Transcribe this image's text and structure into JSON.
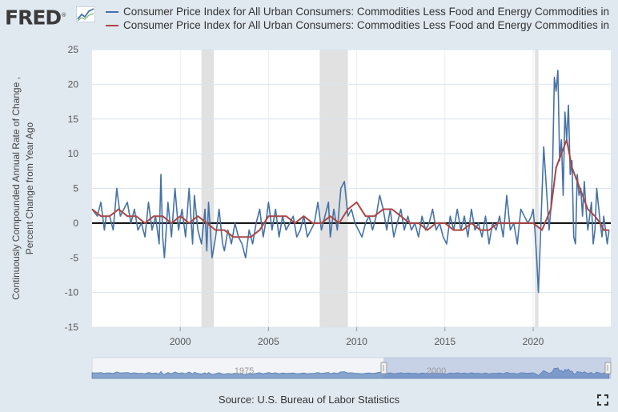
{
  "header": {
    "logo_text": "FRED",
    "logo_mark": "®",
    "logo_icon": "fred-chart-icon"
  },
  "legend": [
    {
      "label": "Consumer Price Index for All Urban Consumers: Commodities Less Food and Energy Commodities in",
      "color": "#4572a7"
    },
    {
      "label": "Consumer Price Index for All Urban Consumers: Commodities Less Food and Energy Commodities in",
      "color": "#aa4643"
    }
  ],
  "source": "Source: U.S. Bureau of Labor Statistics",
  "chart_data": {
    "type": "line",
    "title": "",
    "xlabel": "",
    "ylabel": "Continuously Compounded Annual Rate of Change ,\nPercent Change from Year Ago",
    "xlim": [
      1995.0,
      2024.4
    ],
    "ylim": [
      -15,
      25
    ],
    "yticks": [
      -15,
      -10,
      -5,
      0,
      5,
      10,
      15,
      20,
      25
    ],
    "xticks": [
      2000,
      2005,
      2010,
      2015,
      2020
    ],
    "recessions": [
      [
        2001.2,
        2001.9
      ],
      [
        2007.9,
        2009.5
      ],
      [
        2020.1,
        2020.3
      ]
    ],
    "zero_line": 0,
    "series": [
      {
        "name": "Consumer Price Index for All Urban Consumers: Commodities Less Food and Energy Commodities in (Continuously Compounded Annual Rate of Change)",
        "color": "#4572a7",
        "points": [
          [
            1995.0,
            2
          ],
          [
            1995.3,
            1
          ],
          [
            1995.5,
            3
          ],
          [
            1995.7,
            -1
          ],
          [
            1995.8,
            1
          ],
          [
            1996.0,
            1
          ],
          [
            1996.2,
            -1
          ],
          [
            1996.4,
            5
          ],
          [
            1996.6,
            1
          ],
          [
            1996.8,
            2
          ],
          [
            1997.0,
            3
          ],
          [
            1997.2,
            0
          ],
          [
            1997.4,
            2
          ],
          [
            1997.6,
            -1
          ],
          [
            1997.8,
            0
          ],
          [
            1998.0,
            -2
          ],
          [
            1998.2,
            3
          ],
          [
            1998.4,
            -1
          ],
          [
            1998.6,
            1
          ],
          [
            1998.8,
            -3
          ],
          [
            1998.9,
            7
          ],
          [
            1999.0,
            -2
          ],
          [
            1999.1,
            -5
          ],
          [
            1999.3,
            3
          ],
          [
            1999.5,
            -2
          ],
          [
            1999.7,
            5
          ],
          [
            1999.9,
            -1
          ],
          [
            2000.1,
            2
          ],
          [
            2000.3,
            -2
          ],
          [
            2000.5,
            5
          ],
          [
            2000.7,
            -3
          ],
          [
            2000.8,
            4
          ],
          [
            2001.0,
            -1
          ],
          [
            2001.2,
            -3
          ],
          [
            2001.4,
            2
          ],
          [
            2001.5,
            -4
          ],
          [
            2001.6,
            3
          ],
          [
            2001.8,
            -5
          ],
          [
            2002.0,
            -2
          ],
          [
            2002.2,
            2
          ],
          [
            2002.4,
            -3
          ],
          [
            2002.5,
            -4
          ],
          [
            2002.7,
            -1
          ],
          [
            2002.9,
            -3
          ],
          [
            2003.1,
            0
          ],
          [
            2003.3,
            -2
          ],
          [
            2003.5,
            -3
          ],
          [
            2003.7,
            -5
          ],
          [
            2003.9,
            -1
          ],
          [
            2004.1,
            -3
          ],
          [
            2004.3,
            0
          ],
          [
            2004.5,
            2
          ],
          [
            2004.7,
            -2
          ],
          [
            2004.9,
            1
          ],
          [
            2005.0,
            3
          ],
          [
            2005.2,
            -1
          ],
          [
            2005.4,
            2
          ],
          [
            2005.6,
            -2
          ],
          [
            2005.8,
            1
          ],
          [
            2006.0,
            -1
          ],
          [
            2006.2,
            0
          ],
          [
            2006.4,
            1
          ],
          [
            2006.6,
            -2
          ],
          [
            2006.8,
            -1
          ],
          [
            2007.0,
            1
          ],
          [
            2007.2,
            -2
          ],
          [
            2007.4,
            -1
          ],
          [
            2007.6,
            0
          ],
          [
            2007.8,
            3
          ],
          [
            2008.0,
            -1
          ],
          [
            2008.2,
            1
          ],
          [
            2008.4,
            3
          ],
          [
            2008.5,
            -2
          ],
          [
            2008.7,
            2
          ],
          [
            2008.9,
            -1
          ],
          [
            2009.1,
            5
          ],
          [
            2009.3,
            6
          ],
          [
            2009.5,
            1
          ],
          [
            2009.7,
            2
          ],
          [
            2009.9,
            0
          ],
          [
            2010.1,
            -1
          ],
          [
            2010.3,
            -2
          ],
          [
            2010.5,
            0
          ],
          [
            2010.7,
            1
          ],
          [
            2010.9,
            -1
          ],
          [
            2011.1,
            1
          ],
          [
            2011.3,
            4
          ],
          [
            2011.5,
            2
          ],
          [
            2011.7,
            -1
          ],
          [
            2011.9,
            2
          ],
          [
            2012.1,
            -2
          ],
          [
            2012.3,
            0
          ],
          [
            2012.5,
            2
          ],
          [
            2012.7,
            -1
          ],
          [
            2012.9,
            1
          ],
          [
            2013.1,
            -1
          ],
          [
            2013.3,
            0
          ],
          [
            2013.5,
            -2
          ],
          [
            2013.7,
            1
          ],
          [
            2013.9,
            -1
          ],
          [
            2014.1,
            0
          ],
          [
            2014.3,
            2
          ],
          [
            2014.5,
            -1
          ],
          [
            2014.7,
            0
          ],
          [
            2014.9,
            -2
          ],
          [
            2015.1,
            -3
          ],
          [
            2015.3,
            1
          ],
          [
            2015.5,
            -1
          ],
          [
            2015.7,
            2
          ],
          [
            2015.9,
            -1
          ],
          [
            2016.1,
            1
          ],
          [
            2016.3,
            -2
          ],
          [
            2016.5,
            2
          ],
          [
            2016.7,
            -1
          ],
          [
            2016.9,
            0
          ],
          [
            2017.1,
            -2
          ],
          [
            2017.3,
            1
          ],
          [
            2017.5,
            -3
          ],
          [
            2017.7,
            0
          ],
          [
            2017.9,
            -1
          ],
          [
            2018.1,
            1
          ],
          [
            2018.3,
            -2
          ],
          [
            2018.5,
            4
          ],
          [
            2018.7,
            -1
          ],
          [
            2018.9,
            0
          ],
          [
            2019.1,
            -3
          ],
          [
            2019.3,
            2
          ],
          [
            2019.5,
            1
          ],
          [
            2019.7,
            0
          ],
          [
            2019.9,
            1
          ],
          [
            2020.0,
            2
          ],
          [
            2020.1,
            -1
          ],
          [
            2020.2,
            -5
          ],
          [
            2020.3,
            -10
          ],
          [
            2020.5,
            4
          ],
          [
            2020.6,
            11
          ],
          [
            2020.8,
            3
          ],
          [
            2020.9,
            -1
          ],
          [
            2021.0,
            2
          ],
          [
            2021.1,
            8
          ],
          [
            2021.2,
            21
          ],
          [
            2021.3,
            19
          ],
          [
            2021.4,
            22
          ],
          [
            2021.5,
            9
          ],
          [
            2021.6,
            12
          ],
          [
            2021.7,
            4
          ],
          [
            2021.8,
            16
          ],
          [
            2021.9,
            12
          ],
          [
            2022.0,
            17
          ],
          [
            2022.1,
            7
          ],
          [
            2022.2,
            9
          ],
          [
            2022.3,
            -2
          ],
          [
            2022.4,
            -3
          ],
          [
            2022.5,
            7
          ],
          [
            2022.6,
            4
          ],
          [
            2022.7,
            5
          ],
          [
            2022.8,
            1
          ],
          [
            2022.9,
            6
          ],
          [
            2023.0,
            2
          ],
          [
            2023.1,
            -1
          ],
          [
            2023.3,
            3
          ],
          [
            2023.4,
            -3
          ],
          [
            2023.5,
            -1
          ],
          [
            2023.6,
            5
          ],
          [
            2023.8,
            0
          ],
          [
            2023.9,
            -2
          ],
          [
            2024.0,
            1
          ],
          [
            2024.1,
            -1
          ],
          [
            2024.2,
            -3
          ],
          [
            2024.3,
            -1
          ]
        ]
      },
      {
        "name": "Consumer Price Index for All Urban Consumers: Commodities Less Food and Energy Commodities in (Percent Change from Year Ago)",
        "color": "#aa4643",
        "points": [
          [
            1995.0,
            2
          ],
          [
            1995.5,
            1
          ],
          [
            1996.0,
            1
          ],
          [
            1996.5,
            2
          ],
          [
            1997.0,
            1
          ],
          [
            1997.5,
            1
          ],
          [
            1998.0,
            0
          ],
          [
            1998.5,
            1
          ],
          [
            1999.0,
            1
          ],
          [
            1999.5,
            0
          ],
          [
            2000.0,
            1
          ],
          [
            2000.5,
            0
          ],
          [
            2001.0,
            1
          ],
          [
            2001.5,
            0
          ],
          [
            2002.0,
            -1
          ],
          [
            2002.5,
            -1
          ],
          [
            2003.0,
            -2
          ],
          [
            2003.5,
            -2
          ],
          [
            2004.0,
            -2
          ],
          [
            2004.5,
            -1
          ],
          [
            2005.0,
            1
          ],
          [
            2005.5,
            1
          ],
          [
            2006.0,
            1
          ],
          [
            2006.5,
            0
          ],
          [
            2007.0,
            1
          ],
          [
            2007.5,
            0
          ],
          [
            2008.0,
            0
          ],
          [
            2008.5,
            1
          ],
          [
            2009.0,
            0
          ],
          [
            2009.5,
            2
          ],
          [
            2010.0,
            3
          ],
          [
            2010.5,
            1
          ],
          [
            2011.0,
            1
          ],
          [
            2011.5,
            2
          ],
          [
            2012.0,
            2
          ],
          [
            2012.5,
            1
          ],
          [
            2013.0,
            0
          ],
          [
            2013.5,
            0
          ],
          [
            2014.0,
            -1
          ],
          [
            2014.5,
            0
          ],
          [
            2015.0,
            0
          ],
          [
            2015.5,
            -1
          ],
          [
            2016.0,
            -1
          ],
          [
            2016.5,
            0
          ],
          [
            2017.0,
            -1
          ],
          [
            2017.5,
            -1
          ],
          [
            2018.0,
            0
          ],
          [
            2018.5,
            0
          ],
          [
            2019.0,
            0
          ],
          [
            2019.5,
            0
          ],
          [
            2020.0,
            0
          ],
          [
            2020.5,
            -1
          ],
          [
            2021.0,
            2
          ],
          [
            2021.3,
            8
          ],
          [
            2021.6,
            10
          ],
          [
            2021.9,
            12
          ],
          [
            2022.2,
            8
          ],
          [
            2022.5,
            6
          ],
          [
            2022.8,
            4
          ],
          [
            2023.1,
            2
          ],
          [
            2023.5,
            1
          ],
          [
            2023.8,
            0
          ],
          [
            2024.0,
            -1
          ],
          [
            2024.3,
            -1
          ]
        ]
      }
    ],
    "navigator": {
      "labels": [
        "1975",
        "2000"
      ],
      "range": [
        1995.0,
        2024.4
      ]
    }
  }
}
